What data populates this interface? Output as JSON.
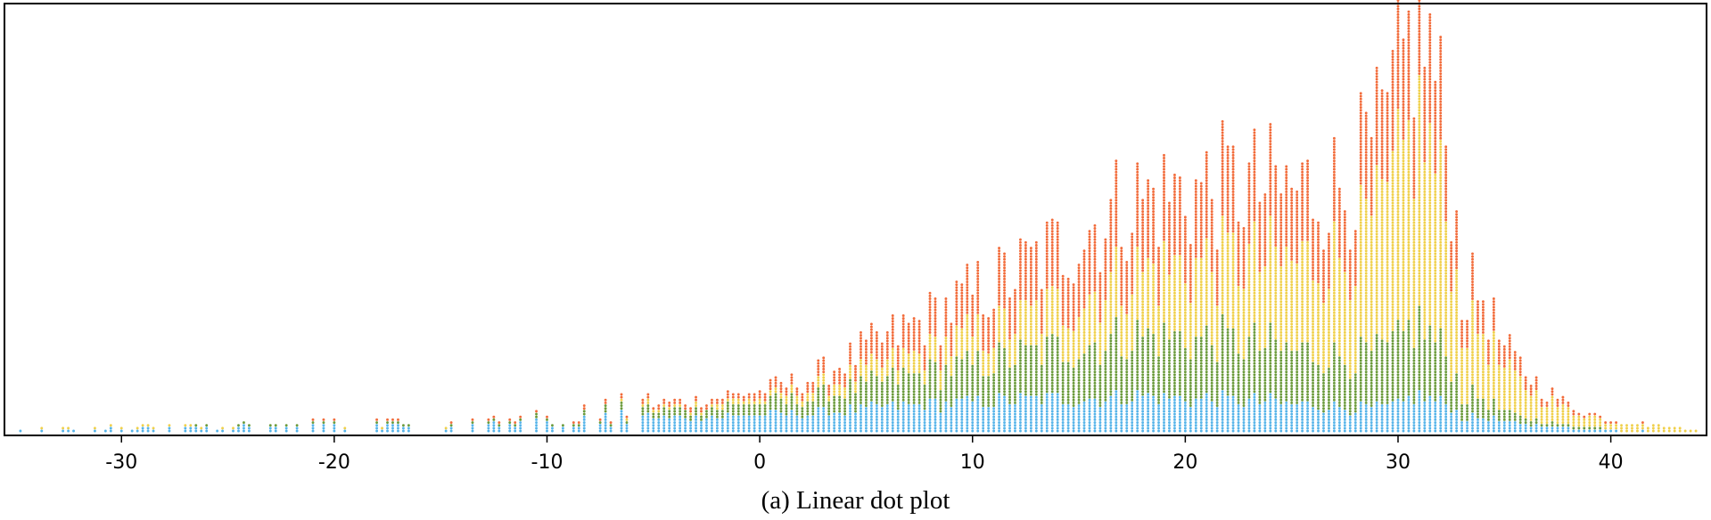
{
  "chart_data": {
    "type": "scatter",
    "subtype": "stacked dot plot",
    "title": "",
    "xlabel": "",
    "ylabel": "",
    "xlim": [
      -35.5,
      44.5
    ],
    "x_ticks": [
      -30,
      -20,
      -10,
      0,
      10,
      20,
      30,
      40
    ],
    "y_axis_shown": false,
    "grid": false,
    "legend": "none",
    "series_colors": [
      "#56b4e9",
      "#6a9a3a",
      "#f0d04a",
      "#f26b3a"
    ],
    "bin_width": 0.25,
    "envelope": {
      "x": [
        -35,
        -30,
        -25,
        -20,
        -15,
        -10,
        -5,
        0,
        2.5,
        5,
        7.5,
        10,
        12.5,
        15,
        17.5,
        20,
        22.5,
        25,
        27.5,
        29.5,
        30.5,
        31,
        31.5,
        32.5,
        33,
        34,
        35,
        36,
        37,
        38,
        39,
        40,
        41,
        42,
        43,
        44
      ],
      "count": [
        1,
        2,
        3,
        3,
        4,
        6,
        10,
        15,
        20,
        30,
        40,
        50,
        60,
        72,
        85,
        88,
        90,
        88,
        90,
        110,
        140,
        150,
        140,
        95,
        52,
        50,
        30,
        22,
        15,
        10,
        7,
        5,
        4,
        3,
        2,
        1
      ]
    },
    "composition": {
      "x": [
        -35,
        -10,
        0,
        5,
        10,
        15,
        20,
        25,
        30,
        33,
        35,
        38,
        40,
        44
      ],
      "shares": [
        [
          0.7,
          0.15,
          0.05,
          0.1
        ],
        [
          0.6,
          0.2,
          0.05,
          0.15
        ],
        [
          0.42,
          0.28,
          0.12,
          0.18
        ],
        [
          0.28,
          0.28,
          0.17,
          0.27
        ],
        [
          0.22,
          0.27,
          0.2,
          0.31
        ],
        [
          0.17,
          0.27,
          0.24,
          0.32
        ],
        [
          0.14,
          0.25,
          0.3,
          0.31
        ],
        [
          0.12,
          0.22,
          0.36,
          0.3
        ],
        [
          0.08,
          0.18,
          0.48,
          0.26
        ],
        [
          0.1,
          0.16,
          0.48,
          0.26
        ],
        [
          0.12,
          0.12,
          0.5,
          0.26
        ],
        [
          0.15,
          0.1,
          0.55,
          0.2
        ],
        [
          0.15,
          0.1,
          0.6,
          0.15
        ],
        [
          0.1,
          0.1,
          0.7,
          0.1
        ]
      ]
    }
  },
  "caption": "(a)  Linear dot plot"
}
